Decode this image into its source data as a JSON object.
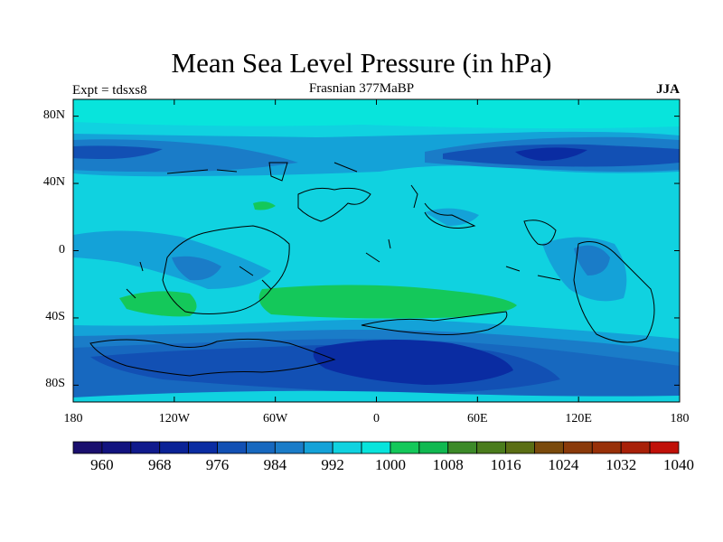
{
  "header": {
    "title": "Mean Sea Level Pressure (in hPa)",
    "experiment": "Expt = tdsxs8",
    "period": "Frasnian 377MaBP",
    "season": "JJA"
  },
  "axes": {
    "y_ticks": [
      {
        "label": "80N",
        "lat": 80
      },
      {
        "label": "40N",
        "lat": 40
      },
      {
        "label": "0",
        "lat": 0
      },
      {
        "label": "40S",
        "lat": -40
      },
      {
        "label": "80S",
        "lat": -80
      }
    ],
    "x_ticks": [
      {
        "label": "180",
        "lon": -180
      },
      {
        "label": "120W",
        "lon": -120
      },
      {
        "label": "60W",
        "lon": -60
      },
      {
        "label": "0",
        "lon": 0
      },
      {
        "label": "60E",
        "lon": 60
      },
      {
        "label": "120E",
        "lon": 120
      },
      {
        "label": "180",
        "lon": 180
      }
    ],
    "lon_range": [
      -180,
      180
    ],
    "lat_range": [
      -90,
      90
    ]
  },
  "colorbar": {
    "colors": [
      "#1a0f6e",
      "#12137f",
      "#101a8c",
      "#0a2296",
      "#0a2ca2",
      "#1250b4",
      "#1768bf",
      "#1a7cc8",
      "#14a2d8",
      "#10d2e0",
      "#08e4dc",
      "#14c85a",
      "#10b850",
      "#3c8a28",
      "#4a7c1c",
      "#5a6e14",
      "#7a4a0c",
      "#8a3a0a",
      "#983008",
      "#a82008",
      "#c01008"
    ],
    "labels": [
      "960",
      "968",
      "976",
      "984",
      "992",
      "1000",
      "1008",
      "1016",
      "1024",
      "1032",
      "1040"
    ]
  },
  "field_colors": {
    "c976": "#0a2ca2",
    "c980": "#1250b4",
    "c984": "#1768bf",
    "c988": "#1a7cc8",
    "c992": "#14a2d8",
    "c996": "#10d2e0",
    "c1000": "#08e4dc",
    "c1004": "#14c85a"
  }
}
